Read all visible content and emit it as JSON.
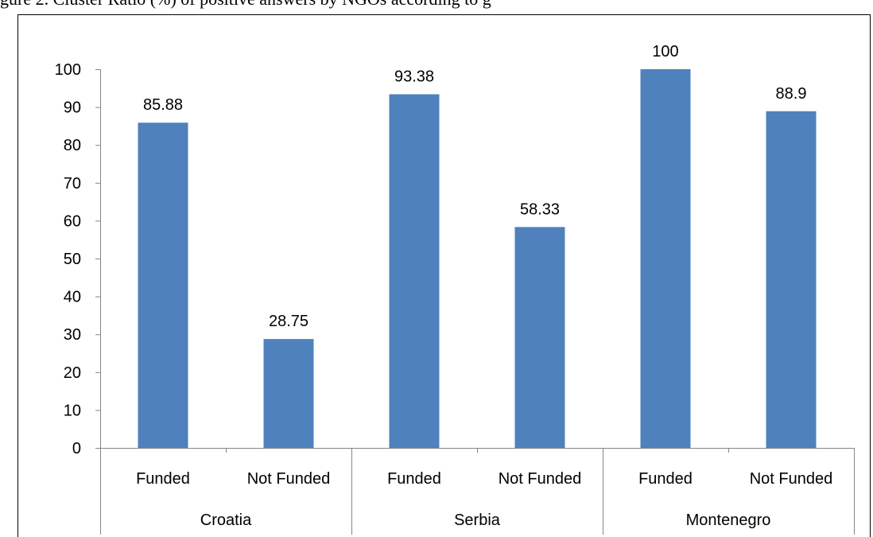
{
  "caption": "gure 2. Cluster Ratio (%) of positive answers by NGOs according to g",
  "chart_data": {
    "type": "bar",
    "groups": [
      {
        "name": "Croatia",
        "categories": [
          "Funded",
          "Not Funded"
        ],
        "values": [
          85.88,
          28.75
        ]
      },
      {
        "name": "Serbia",
        "categories": [
          "Funded",
          "Not Funded"
        ],
        "values": [
          93.38,
          58.33
        ]
      },
      {
        "name": "Montenegro",
        "categories": [
          "Funded",
          "Not Funded"
        ],
        "values": [
          100,
          88.9
        ]
      }
    ],
    "data_labels": [
      "85.88",
      "28.75",
      "93.38",
      "58.33",
      "100",
      "88.9"
    ],
    "y_ticks": [
      "0",
      "10",
      "20",
      "30",
      "40",
      "50",
      "60",
      "70",
      "80",
      "90",
      "100"
    ],
    "ylim": [
      0,
      100
    ],
    "grid": false,
    "legend": "none",
    "colors": {
      "bar": "#4F81BD",
      "axis": "#868686",
      "frame": "#000000"
    }
  }
}
